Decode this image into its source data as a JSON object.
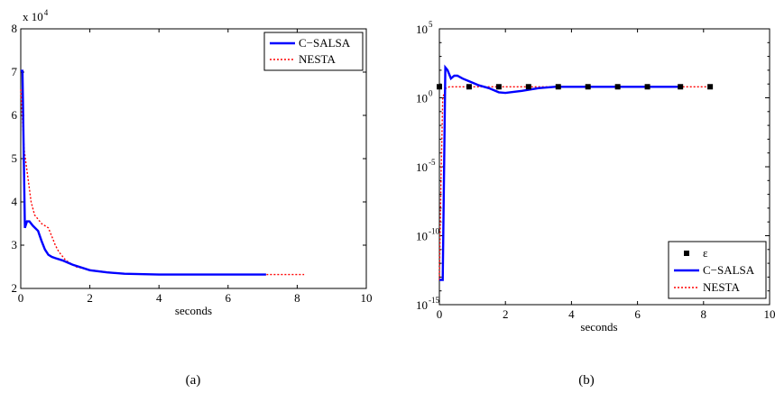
{
  "chart_data": [
    {
      "type": "line",
      "caption": "(a)",
      "xlabel": "seconds",
      "ylabel": "",
      "xlim": [
        0,
        10
      ],
      "ylim": [
        20000,
        80000
      ],
      "y_multiplier_label": "x 10",
      "y_multiplier_exp": "4",
      "xticks": [
        0,
        2,
        4,
        6,
        8,
        10
      ],
      "yticks": [
        20000,
        30000,
        40000,
        50000,
        60000,
        70000,
        80000
      ],
      "ytick_labels": [
        "2",
        "3",
        "4",
        "5",
        "6",
        "7",
        "8"
      ],
      "grid": false,
      "legend_position": "top-right",
      "series": [
        {
          "name": "C−SALSA",
          "color": "#0000ff",
          "style": "solid",
          "x": [
            0.0,
            0.05,
            0.12,
            0.18,
            0.25,
            0.35,
            0.5,
            0.6,
            0.7,
            0.8,
            0.9,
            1.0,
            1.2,
            1.5,
            2.0,
            2.5,
            3.0,
            4.0,
            5.0,
            6.0,
            7.1
          ],
          "y": [
            70300,
            70300,
            34000,
            35500,
            35500,
            34500,
            33300,
            31000,
            29000,
            27800,
            27300,
            27000,
            26500,
            25500,
            24200,
            23700,
            23400,
            23200,
            23200,
            23200,
            23200
          ]
        },
        {
          "name": "NESTA",
          "color": "#ff0000",
          "style": "dotted",
          "x": [
            0.0,
            0.1,
            0.2,
            0.3,
            0.4,
            0.5,
            0.6,
            0.7,
            0.8,
            0.9,
            1.0,
            1.1,
            1.3,
            1.6,
            2.0,
            2.5,
            3.0,
            4.0,
            5.0,
            6.0,
            7.0,
            8.2
          ],
          "y": [
            66000,
            52000,
            46000,
            40000,
            37000,
            36000,
            35000,
            34500,
            34000,
            32000,
            30000,
            28500,
            26500,
            25000,
            24300,
            23800,
            23400,
            23200,
            23200,
            23200,
            23200,
            23200
          ]
        }
      ]
    },
    {
      "type": "line",
      "caption": "(b)",
      "xlabel": "seconds",
      "ylabel": "",
      "xlim": [
        0,
        10
      ],
      "yscale": "log",
      "ylim_exp": [
        -15,
        5
      ],
      "xticks": [
        0,
        2,
        4,
        6,
        8,
        10
      ],
      "ytick_exps": [
        -15,
        -10,
        -5,
        0,
        5
      ],
      "ytick_base": "10",
      "grid": false,
      "legend_position": "bottom-right",
      "series": [
        {
          "name": "ε",
          "color": "#000000",
          "style": "markers",
          "marker": "square",
          "x": [
            0.0,
            0.9,
            1.8,
            2.7,
            3.6,
            4.5,
            5.4,
            6.3,
            7.3,
            8.2
          ],
          "y_exp": [
            0.8,
            0.8,
            0.8,
            0.8,
            0.8,
            0.8,
            0.8,
            0.8,
            0.8,
            0.8
          ]
        },
        {
          "name": "C−SALSA",
          "color": "#0000ff",
          "style": "solid",
          "x": [
            0.0,
            0.1,
            0.18,
            0.25,
            0.35,
            0.45,
            0.55,
            0.7,
            0.9,
            1.2,
            1.5,
            1.8,
            2.0,
            2.5,
            3.0,
            3.5,
            4.0,
            5.0,
            6.0,
            7.0,
            7.3
          ],
          "y_exp": [
            -13.2,
            -13.2,
            2.2,
            2.0,
            1.4,
            1.6,
            1.6,
            1.4,
            1.2,
            0.9,
            0.7,
            0.4,
            0.35,
            0.5,
            0.7,
            0.8,
            0.8,
            0.8,
            0.8,
            0.8,
            0.8
          ]
        },
        {
          "name": "NESTA",
          "color": "#ff0000",
          "style": "dotted",
          "x": [
            0.0,
            0.05,
            0.1,
            0.2,
            0.3,
            0.5,
            1.0,
            2.0,
            4.0,
            6.0,
            8.2
          ],
          "y_exp": [
            -13.2,
            -6.0,
            0.0,
            0.7,
            0.8,
            0.8,
            0.8,
            0.8,
            0.8,
            0.8,
            0.8
          ]
        }
      ]
    }
  ]
}
